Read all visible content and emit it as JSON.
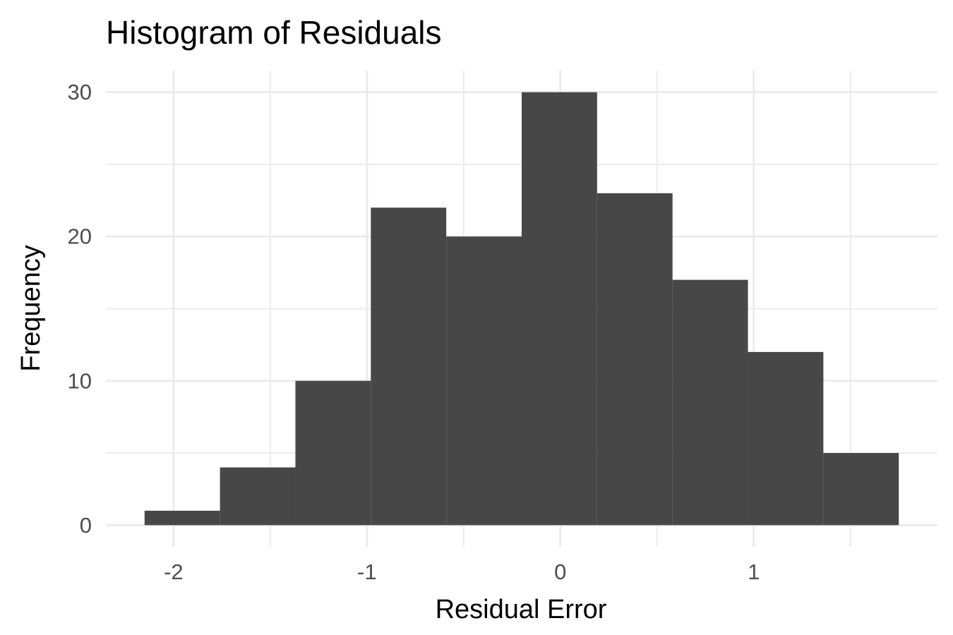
{
  "chart_data": {
    "type": "bar",
    "title": "Histogram of Residuals",
    "xlabel": "Residual Error",
    "ylabel": "Frequency",
    "xlim": [
      -2.35,
      1.95
    ],
    "ylim": [
      -1.5,
      31.5
    ],
    "x_ticks": [
      -2,
      -1,
      0,
      1
    ],
    "x_tick_labels": [
      "-2",
      "-1",
      "0",
      "1"
    ],
    "x_minor_ticks": [
      -1.5,
      -0.5,
      0.5,
      1.5
    ],
    "y_ticks": [
      0,
      10,
      20,
      30
    ],
    "y_tick_labels": [
      "0",
      "10",
      "20",
      "30"
    ],
    "y_minor_ticks": [
      5,
      15,
      25
    ],
    "bins": [
      {
        "x0": -2.15,
        "x1": -1.76,
        "count": 1
      },
      {
        "x0": -1.76,
        "x1": -1.37,
        "count": 4
      },
      {
        "x0": -1.37,
        "x1": -0.98,
        "count": 10
      },
      {
        "x0": -0.98,
        "x1": -0.59,
        "count": 22
      },
      {
        "x0": -0.59,
        "x1": -0.2,
        "count": 20
      },
      {
        "x0": -0.2,
        "x1": 0.19,
        "count": 30
      },
      {
        "x0": 0.19,
        "x1": 0.58,
        "count": 23
      },
      {
        "x0": 0.58,
        "x1": 0.97,
        "count": 17
      },
      {
        "x0": 0.97,
        "x1": 1.36,
        "count": 12
      },
      {
        "x0": 1.36,
        "x1": 1.75,
        "count": 5
      }
    ],
    "bar_color": "#474747",
    "grid": true,
    "legend": "none",
    "theme": "minimal"
  }
}
